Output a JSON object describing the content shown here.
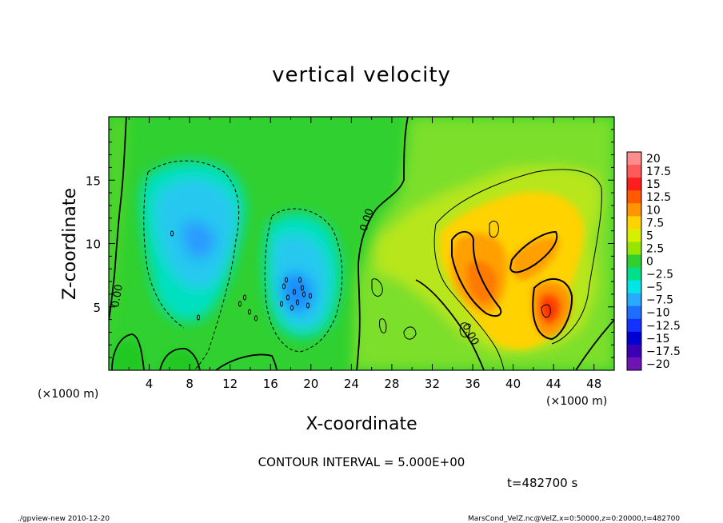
{
  "chart_data": {
    "type": "heatmap",
    "title": "vertical velocity",
    "xlabel": "X-coordinate",
    "ylabel": "Z-coordinate",
    "x_unit": "(×1000 m)",
    "y_unit": "(×1000 m)",
    "xlim": [
      0,
      50
    ],
    "ylim": [
      0,
      20
    ],
    "x_ticks": [
      "4",
      "8",
      "12",
      "16",
      "20",
      "24",
      "28",
      "32",
      "36",
      "40",
      "44",
      "48"
    ],
    "y_ticks": [
      "5",
      "10",
      "15"
    ],
    "colorbar": {
      "labels": [
        "20",
        "17.5",
        "15",
        "12.5",
        "10",
        "7.5",
        "5",
        "2.5",
        "0",
        "−2.5",
        "−5",
        "−7.5",
        "−10",
        "−12.5",
        "−15",
        "−17.5",
        "−20"
      ],
      "colors": [
        "#ff8c8c",
        "#ff5a5a",
        "#ff1e1e",
        "#ff5a00",
        "#ff9600",
        "#ffd200",
        "#d7f000",
        "#96e600",
        "#30d030",
        "#00e08c",
        "#00e6e6",
        "#28aaff",
        "#1e6eff",
        "#1432ff",
        "#0000d2",
        "#3c00b4",
        "#6e14b4"
      ]
    },
    "contour_labels": [
      "0.00",
      "0.00",
      "0.00"
    ],
    "contour_interval": "CONTOUR INTERVAL = 5.000E+00",
    "time": "t=482700 s",
    "footer_left": "./gpview-new  2010-12-20",
    "footer_right": "MarsCond_VelZ.nc@VelZ,x=0:50000,z=0:20000,t=482700"
  }
}
